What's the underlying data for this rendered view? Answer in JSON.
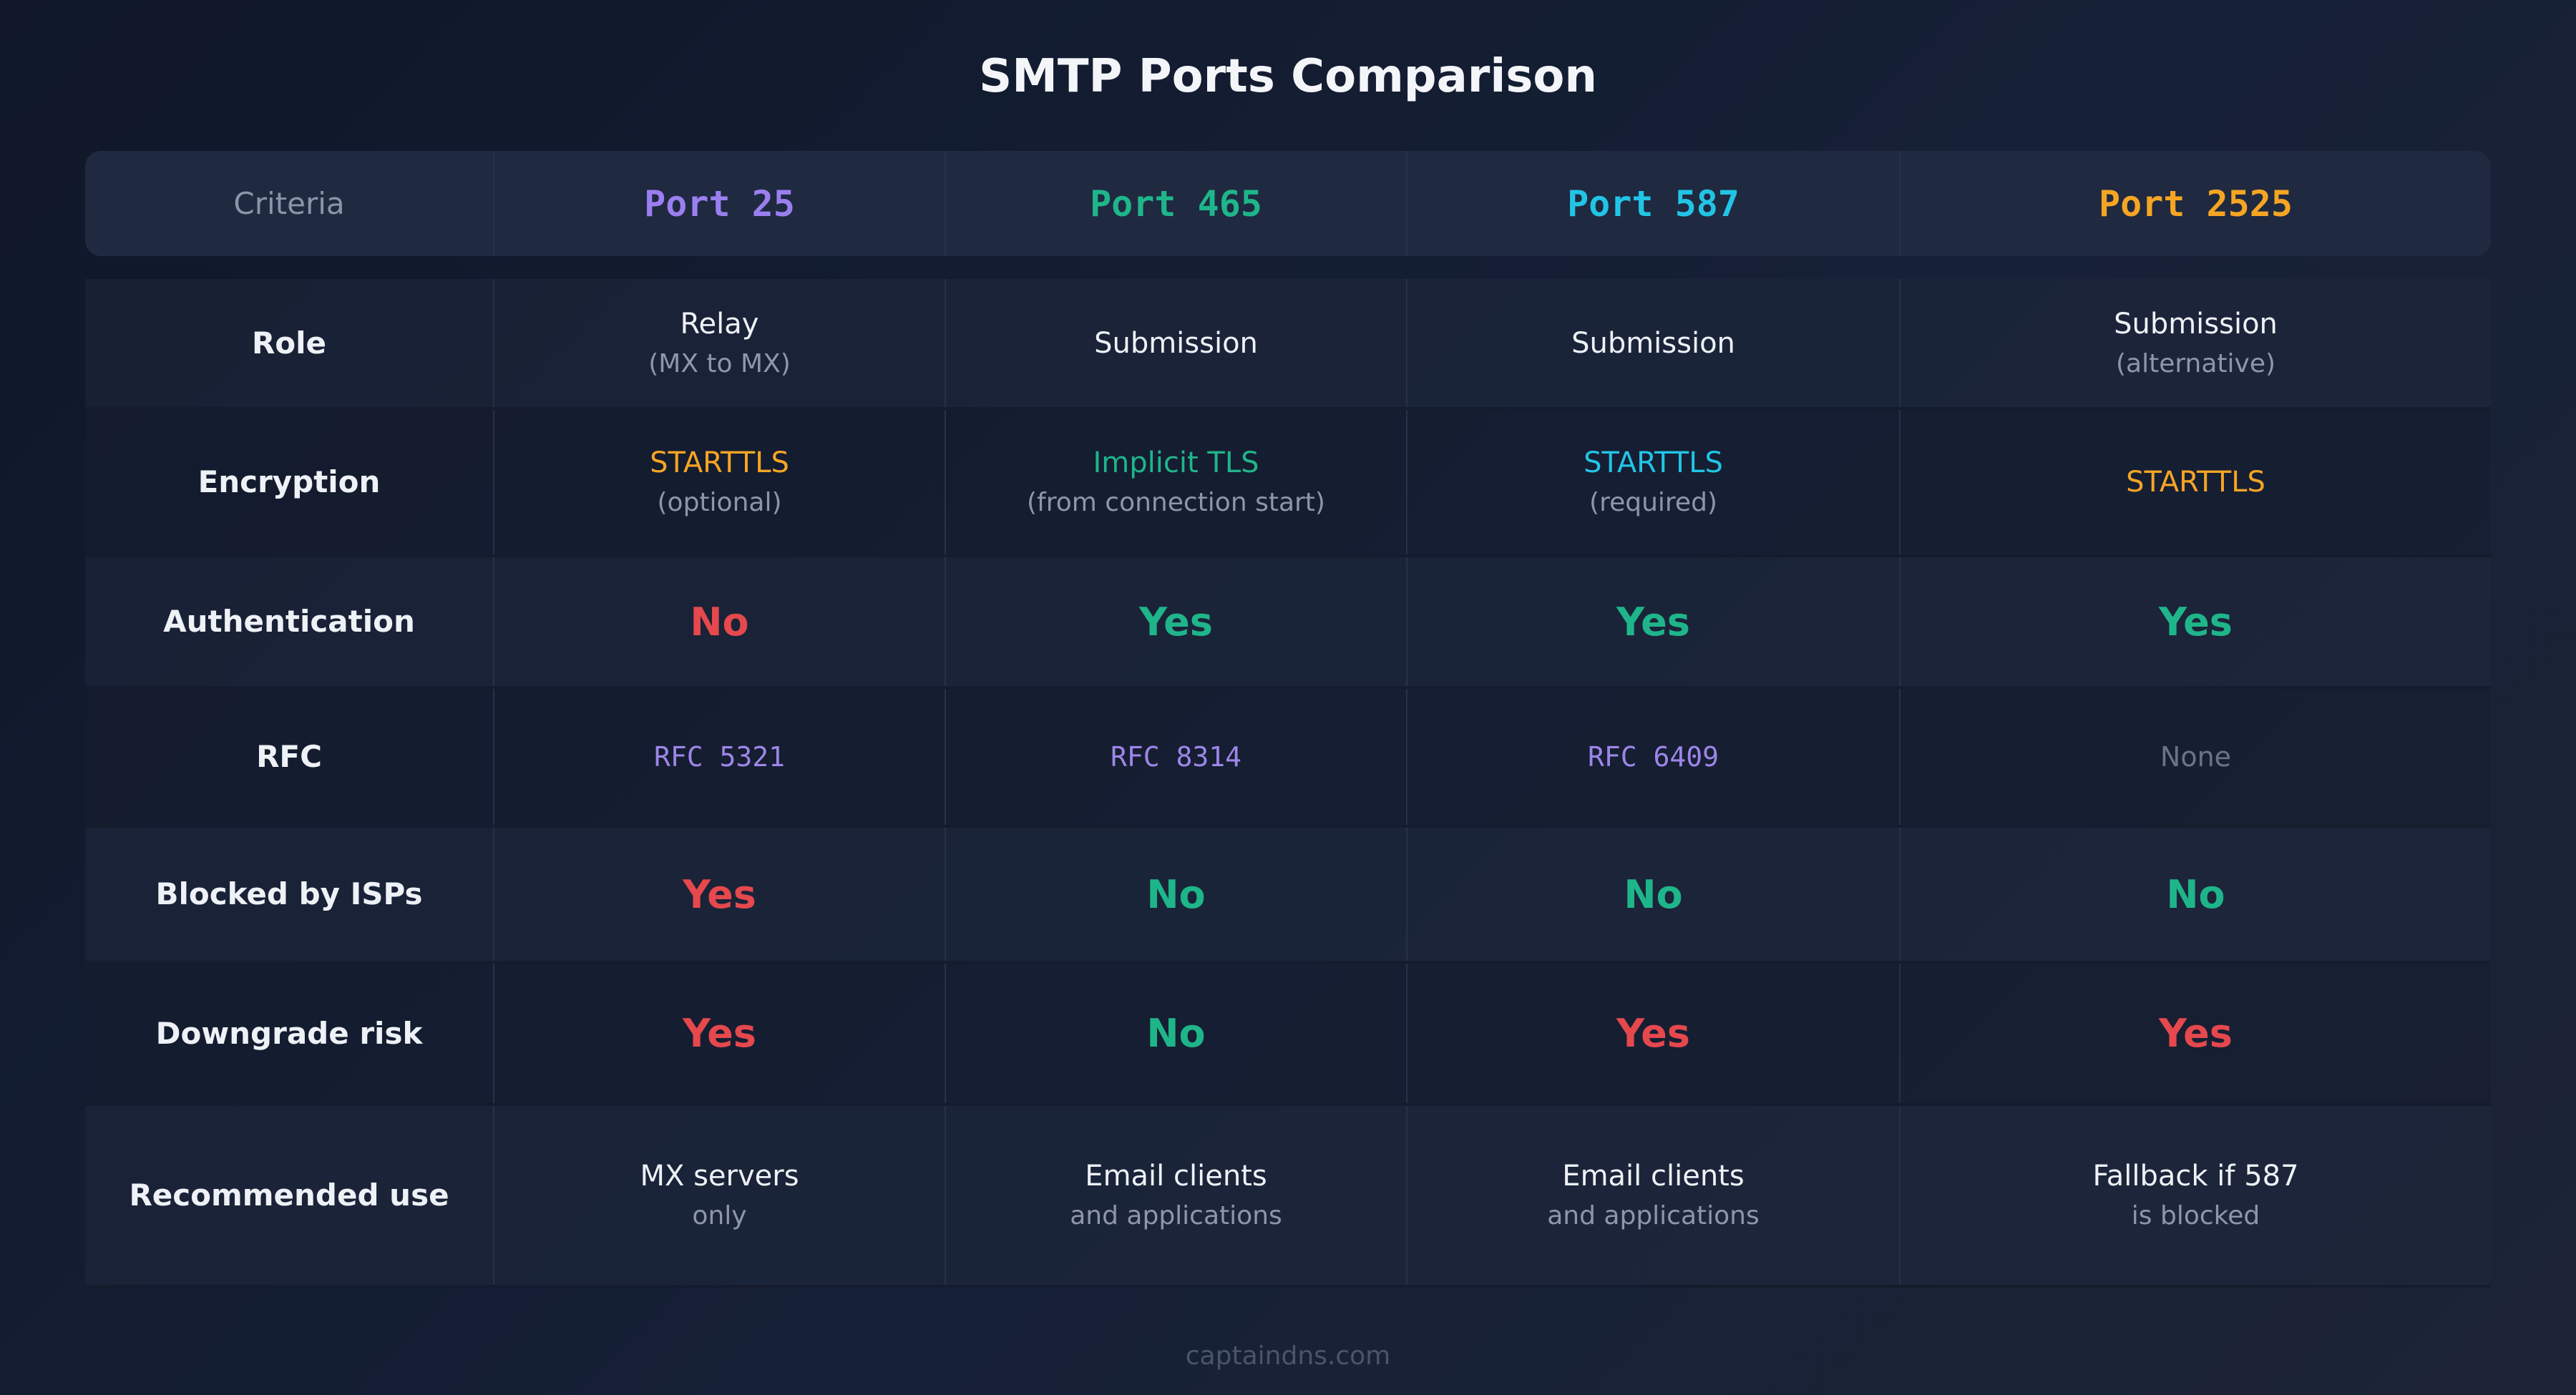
{
  "title": "SMTP Ports Comparison",
  "table": {
    "header": [
      "Criteria",
      "Port 25",
      "Port 465",
      "Port 587",
      "Port 2525"
    ],
    "rows": [
      {
        "label": "Role",
        "cells": [
          {
            "main": "Relay",
            "sub": "(MX to MX)"
          },
          {
            "main": "Submission"
          },
          {
            "main": "Submission"
          },
          {
            "main": "Submission",
            "sub": "(alternative)"
          }
        ]
      },
      {
        "label": "Encryption",
        "cells": [
          {
            "main": "STARTTLS",
            "sub": "(optional)"
          },
          {
            "main": "Implicit TLS",
            "sub": "(from connection start)"
          },
          {
            "main": "STARTTLS",
            "sub": "(required)"
          },
          {
            "main": "STARTTLS"
          }
        ]
      },
      {
        "label": "Authentication",
        "cells": [
          {
            "main": "No"
          },
          {
            "main": "Yes"
          },
          {
            "main": "Yes"
          },
          {
            "main": "Yes"
          }
        ]
      },
      {
        "label": "RFC",
        "cells": [
          {
            "main": "RFC 5321"
          },
          {
            "main": "RFC 8314"
          },
          {
            "main": "RFC 6409"
          },
          {
            "main": "None"
          }
        ]
      },
      {
        "label": "Blocked by ISPs",
        "cells": [
          {
            "main": "Yes"
          },
          {
            "main": "No"
          },
          {
            "main": "No"
          },
          {
            "main": "No"
          }
        ]
      },
      {
        "label": "Downgrade risk",
        "cells": [
          {
            "main": "Yes"
          },
          {
            "main": "No"
          },
          {
            "main": "Yes"
          },
          {
            "main": "Yes"
          }
        ]
      },
      {
        "label": "Recommended use",
        "cells": [
          {
            "main": "MX servers",
            "sub": "only"
          },
          {
            "main": "Email clients",
            "sub": "and applications"
          },
          {
            "main": "Email clients",
            "sub": "and applications"
          },
          {
            "main": "Fallback if 587",
            "sub": "is blocked"
          }
        ]
      }
    ]
  },
  "footer": "captaindns.com"
}
